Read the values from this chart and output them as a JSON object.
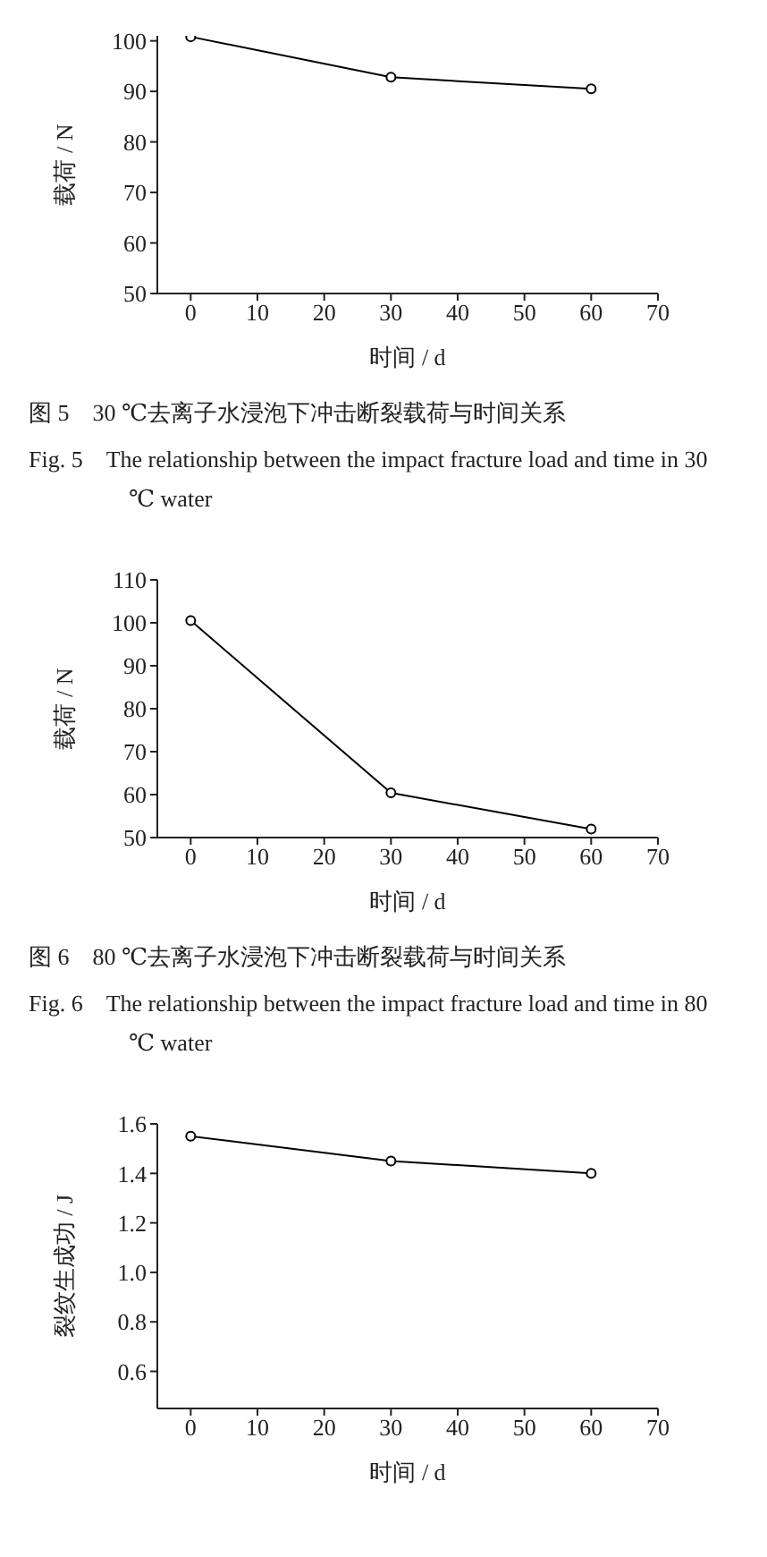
{
  "chart_data": [
    {
      "type": "line",
      "title": "图 5　30 ℃去离子水浸泡下冲击断裂载荷与时间关系",
      "subtitle": "Fig. 5　The relationship between the impact fracture load and time in 30 ℃ water",
      "xlabel": "时间 / d",
      "ylabel": "载荷 / N",
      "x": [
        0,
        30,
        60
      ],
      "series": [
        {
          "color": "#000000",
          "values": [
            100.8,
            92.8,
            90.5
          ]
        }
      ],
      "xlim": [
        -5,
        70
      ],
      "xticks": [
        0,
        10,
        20,
        30,
        40,
        50,
        60,
        70
      ],
      "ylim": [
        50,
        101
      ],
      "yticks": [
        50,
        60,
        70,
        80,
        90,
        100
      ],
      "grid": false,
      "legend": false,
      "marker": "circle",
      "line_style": "solid"
    },
    {
      "type": "line",
      "title": "图 6　80 ℃去离子水浸泡下冲击断裂载荷与时间关系",
      "subtitle": "Fig. 6　The relationship between the impact fracture load and time in 80 ℃ water",
      "xlabel": "时间 / d",
      "ylabel": "载荷 / N",
      "x": [
        0,
        30,
        60
      ],
      "series": [
        {
          "color": "#000000",
          "values": [
            100.5,
            60.4,
            52
          ]
        }
      ],
      "xlim": [
        -5,
        70
      ],
      "xticks": [
        0,
        10,
        20,
        30,
        40,
        50,
        60,
        70
      ],
      "ylim": [
        50,
        110
      ],
      "yticks": [
        50,
        60,
        70,
        80,
        90,
        100,
        110
      ],
      "grid": false,
      "legend": false,
      "marker": "circle",
      "line_style": "solid"
    },
    {
      "type": "line",
      "xlabel": "时间 / d",
      "ylabel": "裂纹生成功 / J",
      "x": [
        0,
        30,
        60
      ],
      "series": [
        {
          "color": "#000000",
          "values": [
            1.55,
            1.45,
            1.4
          ]
        }
      ],
      "xlim": [
        -5,
        70
      ],
      "xticks": [
        0,
        10,
        20,
        30,
        40,
        50,
        60,
        70
      ],
      "ylim": [
        0.45,
        1.6
      ],
      "yticks": [
        {
          "value": 0.6,
          "label": "0.6"
        },
        {
          "value": 0.8,
          "label": "0.8"
        },
        {
          "value": 1.0,
          "label": "1.0"
        },
        {
          "value": 1.2,
          "label": "1.2"
        },
        {
          "value": 1.4,
          "label": "1.4"
        },
        {
          "value": 1.6,
          "label": "1.6"
        }
      ],
      "grid": false,
      "legend": false,
      "marker": "circle",
      "line_style": "solid"
    }
  ]
}
